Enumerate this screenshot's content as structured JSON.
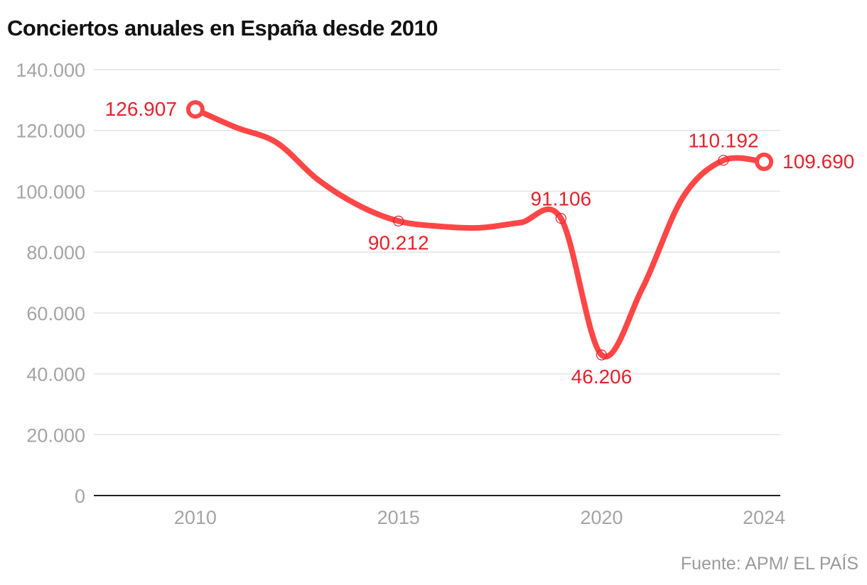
{
  "title": "Conciertos anuales en España desde 2010",
  "source": "Fuente: APM/ EL PAÍS",
  "colors": {
    "line": "#ff4646",
    "label": "#e4222c",
    "grid": "#e3e3e3",
    "axis": "#222222",
    "tick": "#a4a4a4"
  },
  "chart_data": {
    "type": "line",
    "title": "Conciertos anuales en España desde 2010",
    "xlabel": "",
    "ylabel": "",
    "xlim": [
      2007.5,
      2024.4
    ],
    "ylim": [
      0,
      140000
    ],
    "grid": true,
    "x_ticks": [
      2010,
      2015,
      2020,
      2024
    ],
    "x_tick_labels": [
      "2010",
      "2015",
      "2020",
      "2024"
    ],
    "y_ticks": [
      0,
      20000,
      40000,
      60000,
      80000,
      100000,
      120000,
      140000
    ],
    "y_tick_labels": [
      "0",
      "20.000",
      "40.000",
      "60.000",
      "80.000",
      "100.000",
      "120.000",
      "140.000"
    ],
    "series": [
      {
        "x": [
          2010,
          2011,
          2012,
          2013,
          2014,
          2015,
          2016,
          2017,
          2018,
          2019,
          2020,
          2021,
          2022,
          2023,
          2024
        ],
        "y": [
          126907,
          121000,
          116000,
          104000,
          95500,
          90212,
          88500,
          88000,
          89700,
          91106,
          46206,
          68000,
          98000,
          110192,
          109690
        ]
      }
    ],
    "annotations": [
      {
        "x": 2010,
        "y": 126907,
        "text": "126.907",
        "marker": "large",
        "position": "left"
      },
      {
        "x": 2015,
        "y": 90212,
        "text": "90.212",
        "marker": "small",
        "position": "below"
      },
      {
        "x": 2019,
        "y": 91106,
        "text": "91.106",
        "marker": "small",
        "position": "above"
      },
      {
        "x": 2020,
        "y": 46206,
        "text": "46.206",
        "marker": "small",
        "position": "below"
      },
      {
        "x": 2023,
        "y": 110192,
        "text": "110.192",
        "marker": "small",
        "position": "above"
      },
      {
        "x": 2024,
        "y": 109690,
        "text": "109.690",
        "marker": "large",
        "position": "right"
      }
    ]
  }
}
